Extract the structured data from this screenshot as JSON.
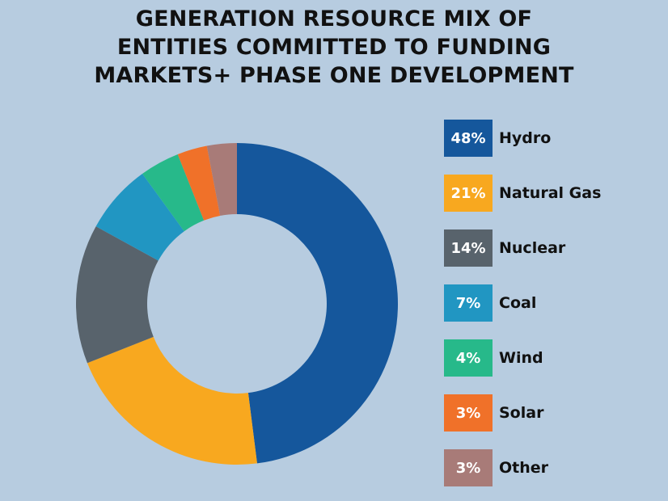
{
  "chart_data": {
    "type": "pie",
    "subtype": "donut",
    "title": "GENERATION RESOURCE MIX OF ENTITIES COMMITTED TO FUNDING MARKETS+ PHASE ONE DEVELOPMENT",
    "title_lines": [
      "GENERATION RESOURCE MIX OF",
      "ENTITIES COMMITTED TO FUNDING",
      "MARKETS+ PHASE ONE DEVELOPMENT"
    ],
    "unit": "%",
    "legend_position": "right",
    "slices": [
      {
        "label": "Hydro",
        "value": 48,
        "display": "48%",
        "color": "#15579c"
      },
      {
        "label": "Natural Gas",
        "value": 21,
        "display": "21%",
        "color": "#f8a81f"
      },
      {
        "label": "Nuclear",
        "value": 14,
        "display": "14%",
        "color": "#58636c"
      },
      {
        "label": "Coal",
        "value": 7,
        "display": "7%",
        "color": "#2196c2"
      },
      {
        "label": "Wind",
        "value": 4,
        "display": "4%",
        "color": "#27b98a"
      },
      {
        "label": "Solar",
        "value": 3,
        "display": "3%",
        "color": "#f07129"
      },
      {
        "label": "Other",
        "value": 3,
        "display": "3%",
        "color": "#a87b78"
      }
    ]
  },
  "colors": {
    "background": "#b7cce0"
  }
}
